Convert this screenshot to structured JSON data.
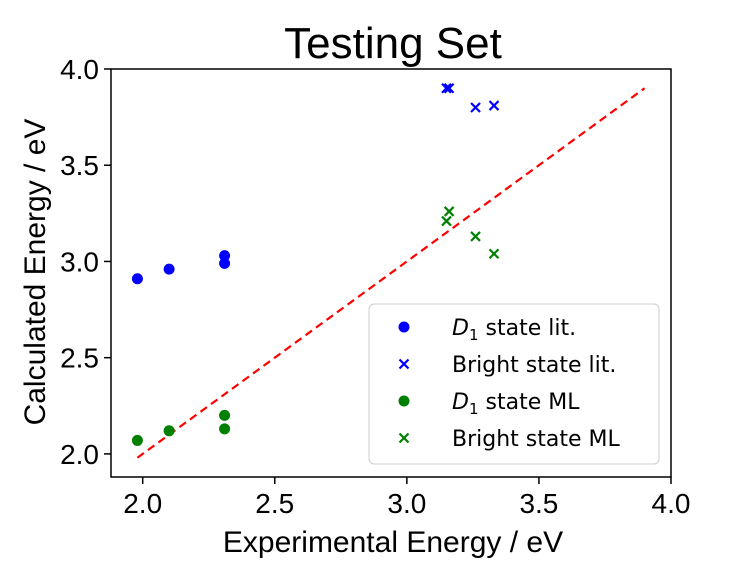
{
  "chart_data": {
    "type": "scatter",
    "title": "Testing Set",
    "xlabel": "Experimental Energy / eV",
    "ylabel": "Calculated Energy / eV",
    "xlim": [
      1.88,
      4.0
    ],
    "ylim": [
      1.88,
      4.0
    ],
    "xticks": [
      2.0,
      2.5,
      3.0,
      3.5,
      4.0
    ],
    "yticks": [
      2.0,
      2.5,
      3.0,
      3.5,
      4.0
    ],
    "xtick_labels": [
      "2.0",
      "2.5",
      "3.0",
      "3.5",
      "4.0"
    ],
    "ytick_labels": [
      "2.0",
      "2.5",
      "3.0",
      "3.5",
      "4.0"
    ],
    "grid": false,
    "legend_position": "lower-right",
    "reference_line": {
      "name": "y = x",
      "x": [
        1.98,
        3.9
      ],
      "y": [
        1.98,
        3.9
      ],
      "color": "#ff0000",
      "style": "dashed"
    },
    "series": [
      {
        "name": "D1 state lit.",
        "legend_main": "D",
        "legend_sub": "1",
        "legend_rest": " state lit.",
        "marker": "circle",
        "color": "#0000ff",
        "x": [
          1.98,
          2.1,
          2.31,
          2.31
        ],
        "y": [
          2.91,
          2.96,
          3.03,
          2.99
        ]
      },
      {
        "name": "Bright state lit.",
        "legend_main": "Bright state lit.",
        "marker": "x",
        "color": "#0000ff",
        "x": [
          3.15,
          3.16,
          3.26,
          3.33
        ],
        "y": [
          3.9,
          3.9,
          3.8,
          3.81
        ]
      },
      {
        "name": "D1 state ML",
        "legend_main": "D",
        "legend_sub": "1",
        "legend_rest": " state ML",
        "marker": "circle",
        "color": "#008000",
        "x": [
          1.98,
          2.1,
          2.31,
          2.31
        ],
        "y": [
          2.07,
          2.12,
          2.2,
          2.13
        ]
      },
      {
        "name": "Bright state ML",
        "legend_main": "Bright state ML",
        "marker": "x",
        "color": "#008000",
        "x": [
          3.15,
          3.16,
          3.26,
          3.33
        ],
        "y": [
          3.21,
          3.26,
          3.13,
          3.04
        ]
      }
    ]
  }
}
